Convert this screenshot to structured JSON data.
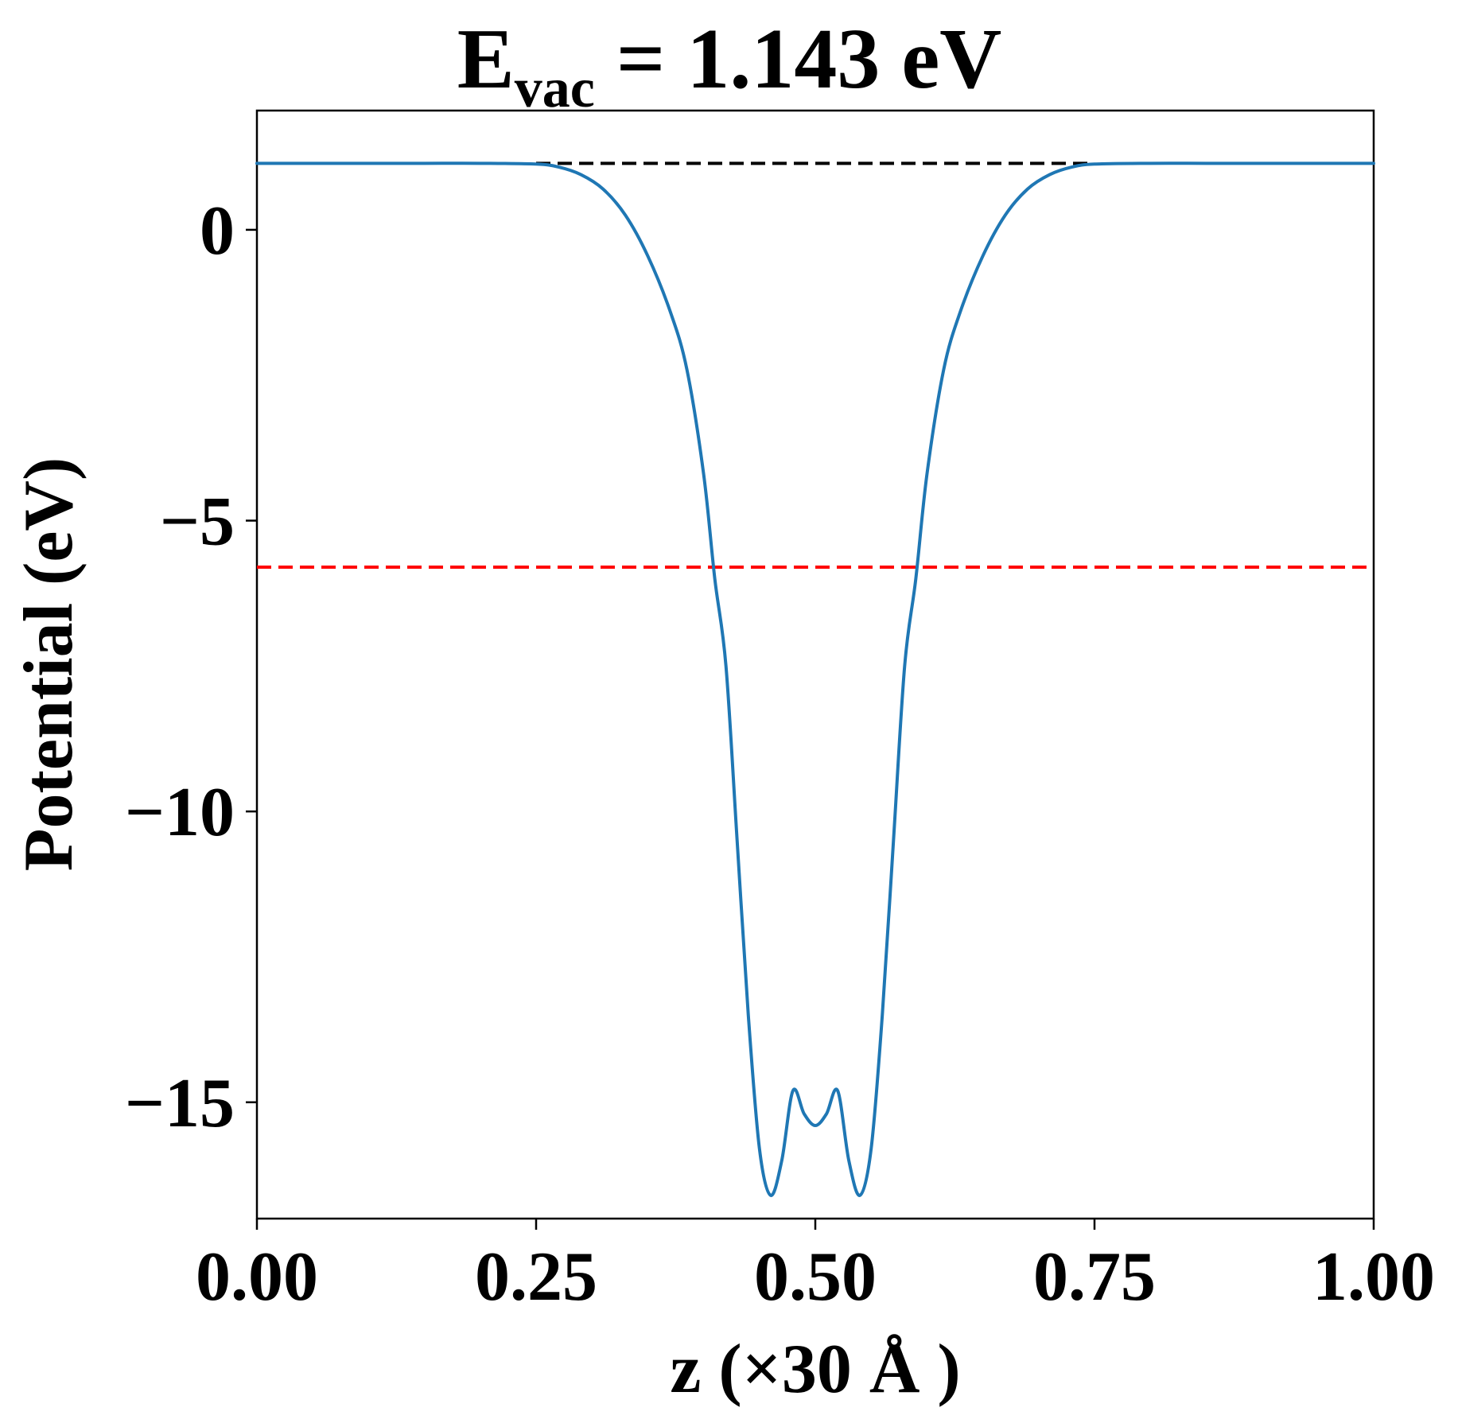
{
  "chart_data": {
    "type": "line",
    "title": {
      "main": "E",
      "subscript": "vac",
      "rest": " = 1.143 eV"
    },
    "xlabel": "z (×30 Å )",
    "ylabel": "Potential (eV)",
    "xlim": [
      0.0,
      1.0
    ],
    "ylim": [
      -17.0,
      2.05
    ],
    "xticks": [
      0.0,
      0.25,
      0.5,
      0.75,
      1.0
    ],
    "xtick_labels": [
      "0.00",
      "0.25",
      "0.50",
      "0.75",
      "1.00"
    ],
    "yticks": [
      0,
      -5,
      -10,
      -15
    ],
    "ytick_labels": [
      "0",
      "−5",
      "−10",
      "−15"
    ],
    "grid": false,
    "series": [
      {
        "color": "#1f77b4",
        "x": [
          0.0,
          0.05,
          0.1,
          0.15,
          0.2,
          0.25,
          0.27,
          0.29,
          0.31,
          0.33,
          0.35,
          0.37,
          0.385,
          0.4,
          0.41,
          0.42,
          0.43,
          0.44,
          0.45,
          0.46,
          0.47,
          0.48,
          0.49,
          0.5,
          0.51,
          0.52,
          0.53,
          0.54,
          0.55,
          0.56,
          0.57,
          0.58,
          0.59,
          0.6,
          0.615,
          0.63,
          0.65,
          0.67,
          0.69,
          0.71,
          0.73,
          0.75,
          0.8,
          0.85,
          0.9,
          0.95,
          1.0
        ],
        "y": [
          1.143,
          1.143,
          1.143,
          1.143,
          1.143,
          1.13,
          1.08,
          0.95,
          0.7,
          0.25,
          -0.45,
          -1.4,
          -2.4,
          -4.2,
          -6.0,
          -7.5,
          -10.5,
          -13.5,
          -15.8,
          -16.6,
          -16.0,
          -14.8,
          -15.2,
          -15.4,
          -15.2,
          -14.8,
          -16.0,
          -16.6,
          -15.8,
          -13.5,
          -10.5,
          -7.5,
          -6.0,
          -4.2,
          -2.4,
          -1.4,
          -0.45,
          0.25,
          0.7,
          0.95,
          1.08,
          1.13,
          1.143,
          1.143,
          1.143,
          1.143,
          1.143
        ]
      }
    ],
    "reference_lines": [
      {
        "y": 1.143,
        "color": "#000000",
        "style": "dashed",
        "x_range": [
          0.25,
          0.75
        ]
      },
      {
        "y": -5.8,
        "color": "#ff0000",
        "style": "dashed",
        "x_range": [
          0.0,
          1.0
        ]
      }
    ]
  }
}
